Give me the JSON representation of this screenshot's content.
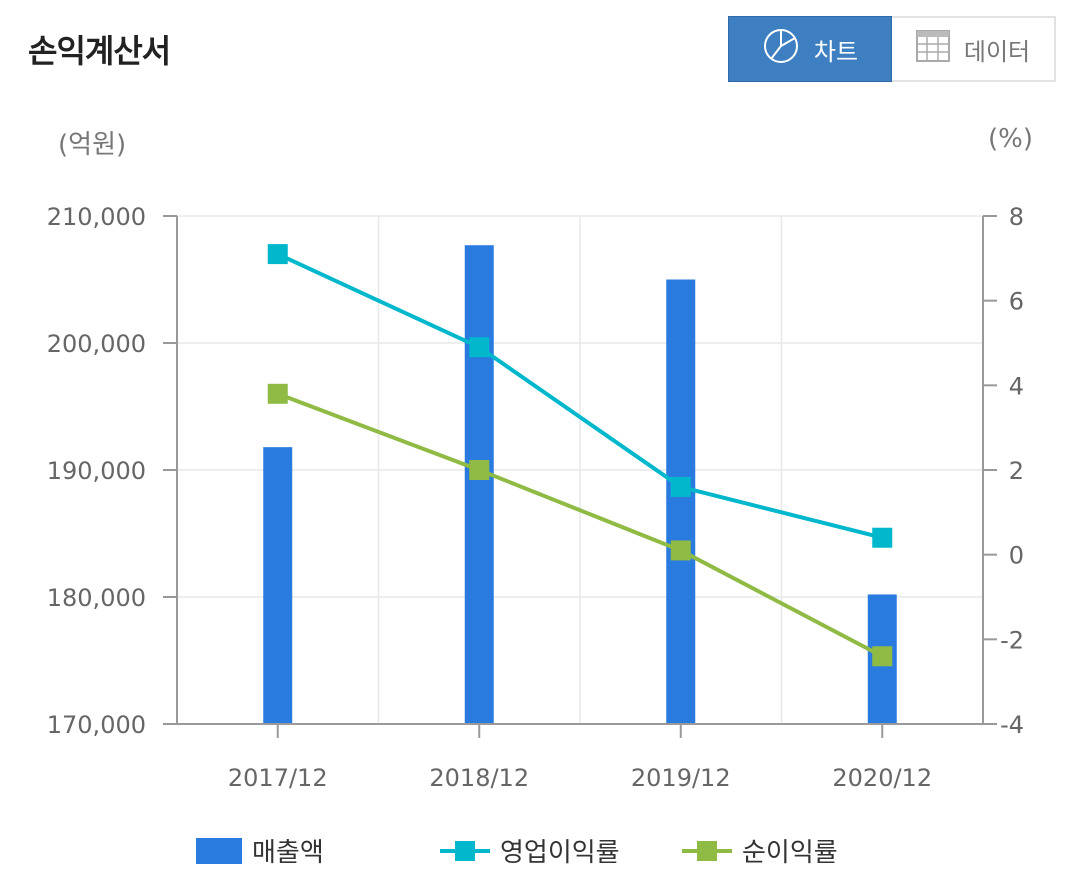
{
  "header": {
    "title": "손익계산서",
    "tabs": [
      {
        "label": "차트",
        "icon": "pie-chart-icon",
        "active": true
      },
      {
        "label": "데이터",
        "icon": "table-grid-icon",
        "active": false
      }
    ]
  },
  "units": {
    "left": "(억원)",
    "right": "(%)"
  },
  "colors": {
    "revenue": "#2a7be0",
    "operating": "#00b7cc",
    "net": "#8fbb45",
    "active_tab": "#3d7fc1"
  },
  "chart_data": {
    "type": "bar",
    "categories": [
      "2017/12",
      "2018/12",
      "2019/12",
      "2020/12"
    ],
    "left_axis": {
      "ylim": [
        170000,
        210000
      ],
      "ticks": [
        "170,000",
        "180,000",
        "190,000",
        "200,000",
        "210,000"
      ],
      "tick_values": [
        170000,
        180000,
        190000,
        200000,
        210000
      ]
    },
    "right_axis": {
      "ylim": [
        -4,
        8
      ],
      "ticks": [
        "-4",
        "-2",
        "0",
        "2",
        "4",
        "6",
        "8"
      ],
      "tick_values": [
        -4,
        -2,
        0,
        2,
        4,
        6,
        8
      ]
    },
    "series": [
      {
        "name": "매출액",
        "type": "bar",
        "axis": "left",
        "values": [
          191800,
          207700,
          205000,
          180200
        ]
      },
      {
        "name": "영업이익률",
        "type": "line",
        "axis": "right",
        "values": [
          7.1,
          4.9,
          1.6,
          0.4
        ]
      },
      {
        "name": "순이익률",
        "type": "line",
        "axis": "right",
        "values": [
          3.8,
          2.0,
          0.1,
          -2.4
        ]
      }
    ],
    "grid": true,
    "legend_position": "bottom"
  }
}
